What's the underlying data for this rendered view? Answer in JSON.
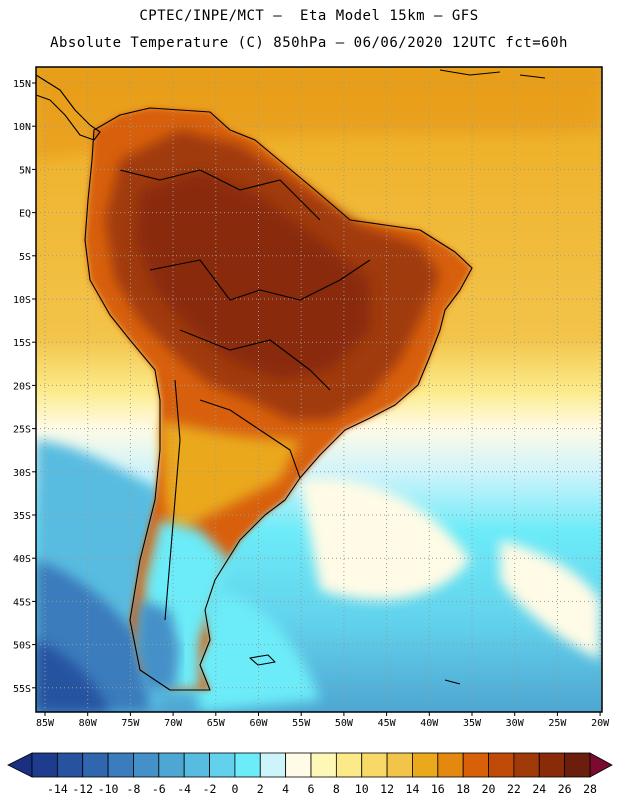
{
  "header": {
    "title_line1": "CPTEC/INPE/MCT –  Eta Model 15km – GFS",
    "title_line2": "Absolute Temperature (C) 850hPa – 06/06/2020 12UTC fct=60h"
  },
  "axes": {
    "lat_labels": [
      "15N",
      "10N",
      "5N",
      "EQ",
      "5S",
      "10S",
      "15S",
      "20S",
      "25S",
      "30S",
      "35S",
      "40S",
      "45S",
      "50S",
      "55S"
    ],
    "lon_labels": [
      "85W",
      "80W",
      "75W",
      "70W",
      "65W",
      "60W",
      "55W",
      "50W",
      "45W",
      "40W",
      "35W",
      "30W",
      "25W",
      "20W"
    ]
  },
  "colorbar": {
    "labels": [
      "-14",
      "-12",
      "-10",
      "-8",
      "-6",
      "-4",
      "-2",
      "0",
      "2",
      "4",
      "6",
      "8",
      "10",
      "12",
      "14",
      "16",
      "18",
      "20",
      "22",
      "24",
      "26",
      "28"
    ],
    "colors": [
      "#1d3c8e",
      "#2752a0",
      "#3066ae",
      "#3a7cbc",
      "#4490c8",
      "#4ea6d2",
      "#58bce0",
      "#62d2ec",
      "#6cebf8",
      "#cdf3fb",
      "#fffbe6",
      "#fef8b6",
      "#fcea88",
      "#f8d866",
      "#f2c44a",
      "#eaa81c",
      "#e48810",
      "#d86008",
      "#c04a08",
      "#a03a08",
      "#8a2a08",
      "#6c1e0c"
    ],
    "under_color": "#1a2f80",
    "over_color": "#7a0a30"
  },
  "theme": {
    "land_outline": "#000000",
    "grid": "#9a9a9a",
    "ocean_base": "#f2b228"
  }
}
